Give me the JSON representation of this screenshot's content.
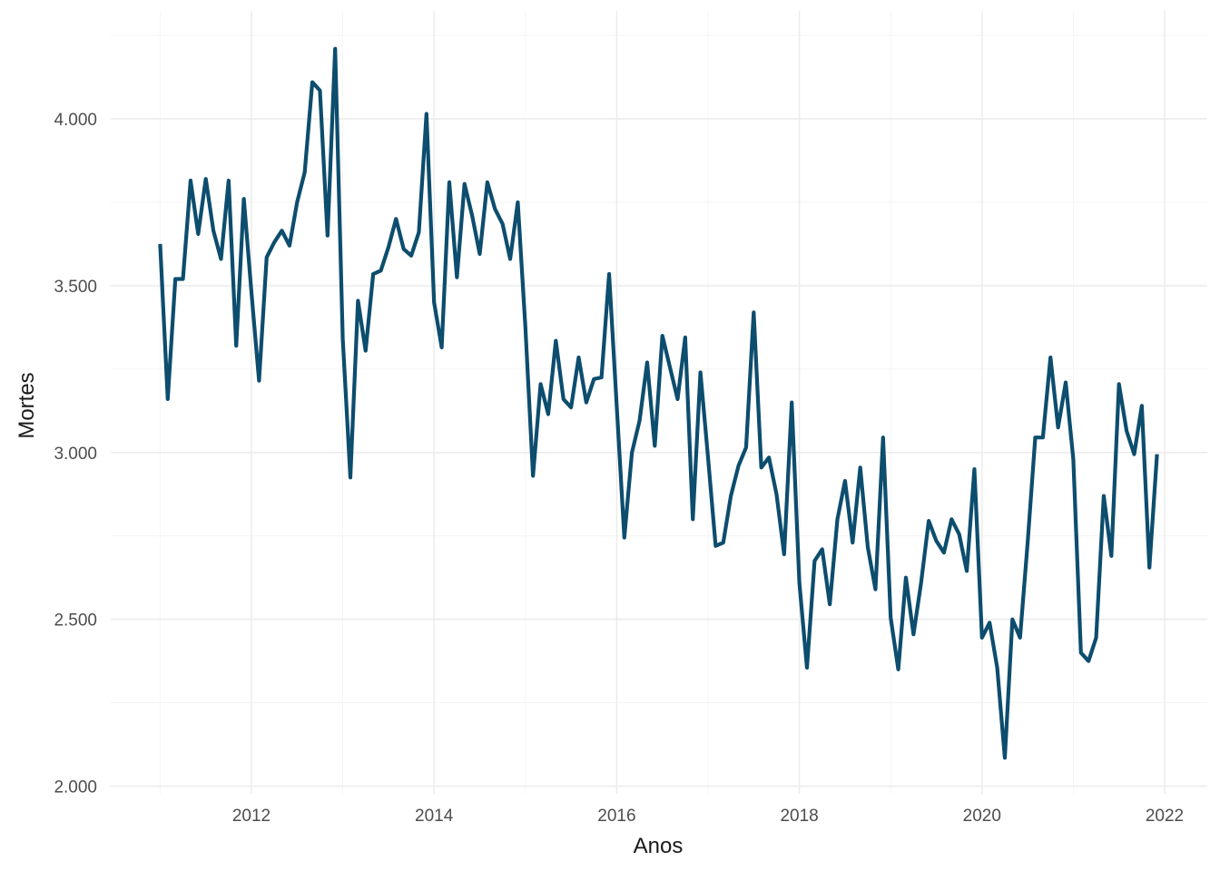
{
  "chart_data": {
    "type": "line",
    "title": "",
    "xlabel": "Anos",
    "ylabel": "Mortes",
    "xlim": [
      2010.95,
      2022.45
    ],
    "ylim": [
      2000,
      4250
    ],
    "x_ticks": [
      2012,
      2014,
      2016,
      2018,
      2020,
      2022
    ],
    "x_tick_labels": [
      "2012",
      "2014",
      "2016",
      "2018",
      "2020",
      "2022"
    ],
    "y_ticks": [
      2000,
      2500,
      3000,
      3500,
      4000
    ],
    "y_tick_labels": [
      "2.000",
      "2.500",
      "3.000",
      "3.500",
      "4.000"
    ],
    "grid": true,
    "colors": {
      "line": "#0d4d6e",
      "grid": "#ebebeb"
    },
    "series": [
      {
        "name": "Mortes",
        "start_year": 2011,
        "frequency": "monthly",
        "values": [
          3625,
          3160,
          3520,
          3520,
          3815,
          3655,
          3820,
          3665,
          3580,
          3815,
          3320,
          3760,
          3480,
          3215,
          3585,
          3630,
          3665,
          3620,
          3750,
          3840,
          4110,
          4085,
          3650,
          4210,
          3340,
          2925,
          3455,
          3305,
          3535,
          3545,
          3615,
          3700,
          3610,
          3590,
          3660,
          4015,
          3450,
          3315,
          3810,
          3525,
          3805,
          3710,
          3595,
          3810,
          3730,
          3685,
          3580,
          3750,
          3375,
          2930,
          3205,
          3115,
          3335,
          3160,
          3135,
          3285,
          3150,
          3220,
          3225,
          3535,
          3140,
          2745,
          3000,
          3095,
          3270,
          3020,
          3350,
          3255,
          3160,
          3345,
          2800,
          3240,
          2985,
          2720,
          2730,
          2870,
          2960,
          3015,
          3420,
          2955,
          2985,
          2875,
          2695,
          3150,
          2610,
          2355,
          2675,
          2710,
          2545,
          2800,
          2915,
          2730,
          2955,
          2715,
          2590,
          3045,
          2505,
          2350,
          2625,
          2455,
          2610,
          2795,
          2735,
          2700,
          2800,
          2755,
          2645,
          2950,
          2445,
          2490,
          2355,
          2085,
          2500,
          2445,
          2730,
          3045,
          3045,
          3285,
          3075,
          3210,
          2980,
          2400,
          2375,
          2445,
          2870,
          2690,
          3205,
          3065,
          2995,
          3140,
          2655,
          2995
        ]
      }
    ]
  }
}
